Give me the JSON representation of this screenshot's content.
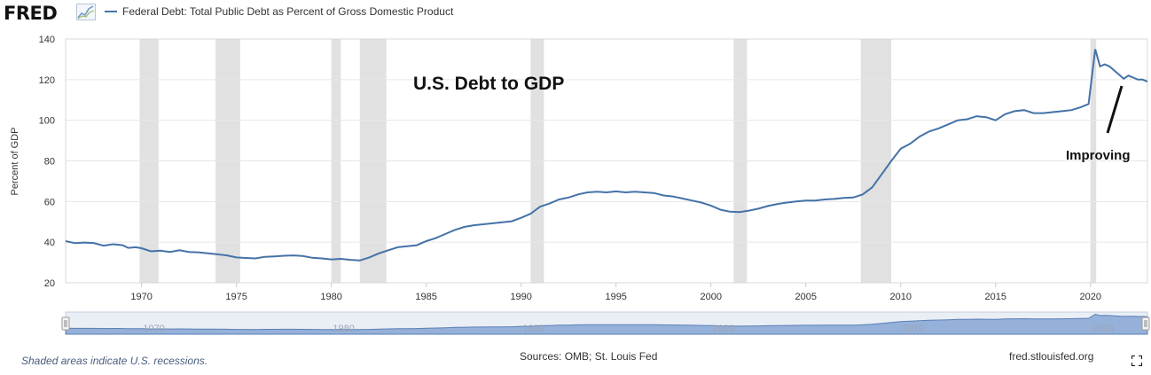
{
  "header": {
    "logo_text": "FRED",
    "legend_label": "Federal Debt: Total Public Debt as Percent of Gross Domestic Product",
    "series_color": "#4572a7"
  },
  "chart_data": {
    "type": "line",
    "title": "",
    "annotation_title": "U.S. Debt to GDP",
    "annotation_arrow_label": "Improving",
    "ylabel": "Percent of GDP",
    "xlabel": "",
    "ylim": [
      20,
      140
    ],
    "xlim": [
      1966,
      2023
    ],
    "yticks": [
      20,
      40,
      60,
      80,
      100,
      120,
      140
    ],
    "xticks": [
      1970,
      1975,
      1980,
      1985,
      1990,
      1995,
      2000,
      2005,
      2010,
      2015,
      2020
    ],
    "grid": "horizontal",
    "recessions": [
      [
        1969.9,
        1970.9
      ],
      [
        1973.9,
        1975.2
      ],
      [
        1980.0,
        1980.5
      ],
      [
        1981.5,
        1982.9
      ],
      [
        1990.5,
        1991.2
      ],
      [
        2001.2,
        2001.9
      ],
      [
        2007.9,
        2009.5
      ],
      [
        2020.0,
        2020.3
      ]
    ],
    "series": [
      {
        "name": "Federal Debt: Total Public Debt as Percent of Gross Domestic Product",
        "color": "#4572a7",
        "points": [
          [
            1966.0,
            40.5
          ],
          [
            1966.5,
            39.5
          ],
          [
            1967.0,
            39.8
          ],
          [
            1967.5,
            39.5
          ],
          [
            1968.0,
            38.3
          ],
          [
            1968.5,
            39.0
          ],
          [
            1969.0,
            38.5
          ],
          [
            1969.3,
            37.2
          ],
          [
            1969.7,
            37.5
          ],
          [
            1970.0,
            37.0
          ],
          [
            1970.5,
            35.5
          ],
          [
            1971.0,
            35.8
          ],
          [
            1971.5,
            35.2
          ],
          [
            1972.0,
            36.0
          ],
          [
            1972.5,
            35.2
          ],
          [
            1973.0,
            35.0
          ],
          [
            1973.5,
            34.5
          ],
          [
            1974.0,
            34.0
          ],
          [
            1974.5,
            33.5
          ],
          [
            1975.0,
            32.5
          ],
          [
            1975.5,
            32.2
          ],
          [
            1976.0,
            32.0
          ],
          [
            1976.5,
            32.8
          ],
          [
            1977.0,
            33.0
          ],
          [
            1977.5,
            33.3
          ],
          [
            1978.0,
            33.5
          ],
          [
            1978.5,
            33.2
          ],
          [
            1979.0,
            32.3
          ],
          [
            1979.5,
            32.0
          ],
          [
            1980.0,
            31.5
          ],
          [
            1980.5,
            31.8
          ],
          [
            1981.0,
            31.3
          ],
          [
            1981.5,
            31.0
          ],
          [
            1982.0,
            32.5
          ],
          [
            1982.5,
            34.5
          ],
          [
            1983.0,
            36.0
          ],
          [
            1983.5,
            37.5
          ],
          [
            1984.0,
            38.0
          ],
          [
            1984.5,
            38.5
          ],
          [
            1985.0,
            40.5
          ],
          [
            1985.5,
            42.0
          ],
          [
            1986.0,
            44.0
          ],
          [
            1986.5,
            46.0
          ],
          [
            1987.0,
            47.5
          ],
          [
            1987.5,
            48.3
          ],
          [
            1988.0,
            48.8
          ],
          [
            1988.5,
            49.3
          ],
          [
            1989.0,
            49.8
          ],
          [
            1989.5,
            50.3
          ],
          [
            1990.0,
            52.0
          ],
          [
            1990.5,
            54.0
          ],
          [
            1991.0,
            57.5
          ],
          [
            1991.5,
            59.0
          ],
          [
            1992.0,
            61.0
          ],
          [
            1992.5,
            62.0
          ],
          [
            1993.0,
            63.5
          ],
          [
            1993.5,
            64.5
          ],
          [
            1994.0,
            64.8
          ],
          [
            1994.5,
            64.5
          ],
          [
            1995.0,
            65.0
          ],
          [
            1995.5,
            64.5
          ],
          [
            1996.0,
            64.8
          ],
          [
            1996.5,
            64.5
          ],
          [
            1997.0,
            64.2
          ],
          [
            1997.5,
            63.0
          ],
          [
            1998.0,
            62.5
          ],
          [
            1998.5,
            61.5
          ],
          [
            1999.0,
            60.5
          ],
          [
            1999.5,
            59.5
          ],
          [
            2000.0,
            58.0
          ],
          [
            2000.5,
            56.0
          ],
          [
            2001.0,
            55.0
          ],
          [
            2001.5,
            54.8
          ],
          [
            2002.0,
            55.5
          ],
          [
            2002.5,
            56.5
          ],
          [
            2003.0,
            57.8
          ],
          [
            2003.5,
            58.8
          ],
          [
            2004.0,
            59.5
          ],
          [
            2004.5,
            60.0
          ],
          [
            2005.0,
            60.5
          ],
          [
            2005.5,
            60.5
          ],
          [
            2006.0,
            61.0
          ],
          [
            2006.5,
            61.3
          ],
          [
            2007.0,
            61.8
          ],
          [
            2007.5,
            62.0
          ],
          [
            2008.0,
            63.5
          ],
          [
            2008.5,
            67.0
          ],
          [
            2009.0,
            73.5
          ],
          [
            2009.5,
            80.0
          ],
          [
            2010.0,
            86.0
          ],
          [
            2010.5,
            88.5
          ],
          [
            2011.0,
            92.0
          ],
          [
            2011.5,
            94.5
          ],
          [
            2012.0,
            96.0
          ],
          [
            2012.5,
            98.0
          ],
          [
            2013.0,
            100.0
          ],
          [
            2013.5,
            100.5
          ],
          [
            2014.0,
            102.0
          ],
          [
            2014.5,
            101.5
          ],
          [
            2015.0,
            100.0
          ],
          [
            2015.5,
            103.0
          ],
          [
            2016.0,
            104.5
          ],
          [
            2016.5,
            105.0
          ],
          [
            2017.0,
            103.5
          ],
          [
            2017.5,
            103.5
          ],
          [
            2018.0,
            104.0
          ],
          [
            2018.5,
            104.5
          ],
          [
            2019.0,
            105.0
          ],
          [
            2019.5,
            106.5
          ],
          [
            2019.9,
            108.0
          ],
          [
            2020.25,
            135.0
          ],
          [
            2020.5,
            126.5
          ],
          [
            2020.75,
            127.5
          ],
          [
            2021.0,
            126.5
          ],
          [
            2021.5,
            122.5
          ],
          [
            2021.75,
            120.5
          ],
          [
            2022.0,
            122.0
          ],
          [
            2022.25,
            121.0
          ],
          [
            2022.5,
            120.0
          ],
          [
            2022.75,
            120.0
          ],
          [
            2023.0,
            119.0
          ]
        ]
      }
    ],
    "navigator_labels": [
      "1970",
      "1980",
      "1990",
      "2000",
      "2010",
      "2020"
    ]
  },
  "footer": {
    "recession_note": "Shaded areas indicate U.S. recessions.",
    "sources": "Sources: OMB; St. Louis Fed",
    "site": "fred.stlouisfed.org"
  }
}
